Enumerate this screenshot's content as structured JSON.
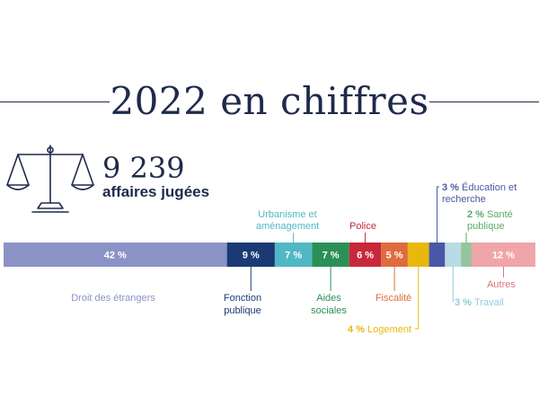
{
  "header": {
    "title": "2022 en chiffres"
  },
  "stat": {
    "number": "9 239",
    "label": "affaires jugées",
    "icon": "scale-of-justice-icon"
  },
  "chart_data": {
    "type": "bar",
    "orientation": "stacked-horizontal",
    "unit": "%",
    "segments": [
      {
        "category": "Droit des étrangers",
        "value": 42,
        "value_label": "42 %",
        "color": "#8b93c6",
        "label_position": "below"
      },
      {
        "category": "Fonction publique",
        "value": 9,
        "value_label": "9 %",
        "color": "#1b3a75",
        "label_position": "below"
      },
      {
        "category": "Urbanisme et aménagement",
        "value": 7,
        "value_label": "7 %",
        "color": "#4fb8c4",
        "label_position": "above"
      },
      {
        "category": "Aides sociales",
        "value": 7,
        "value_label": "7 %",
        "color": "#2a9057",
        "label_position": "below"
      },
      {
        "category": "Police",
        "value": 6,
        "value_label": "6 %",
        "color": "#c7283c",
        "label_position": "above"
      },
      {
        "category": "Fiscalité",
        "value": 5,
        "value_label": "5 %",
        "color": "#e06b3c",
        "label_position": "below"
      },
      {
        "category": "Logement",
        "value": 4,
        "value_label": "4 %",
        "color": "#e8b80f",
        "label_position": "below"
      },
      {
        "category": "Éducation et recherche",
        "value": 3,
        "value_label": "3 %",
        "color": "#4a57a6",
        "label_position": "above"
      },
      {
        "category": "Travail",
        "value": 3,
        "value_label": "3 %",
        "color": "#b9dbe6",
        "label_position": "below"
      },
      {
        "category": "Santé publique",
        "value": 2,
        "value_label": "2 %",
        "color": "#94c59d",
        "label_position": "above"
      },
      {
        "category": "Autres",
        "value": 12,
        "value_label": "12 %",
        "color": "#f0a5a8",
        "label_position": "below"
      }
    ]
  }
}
